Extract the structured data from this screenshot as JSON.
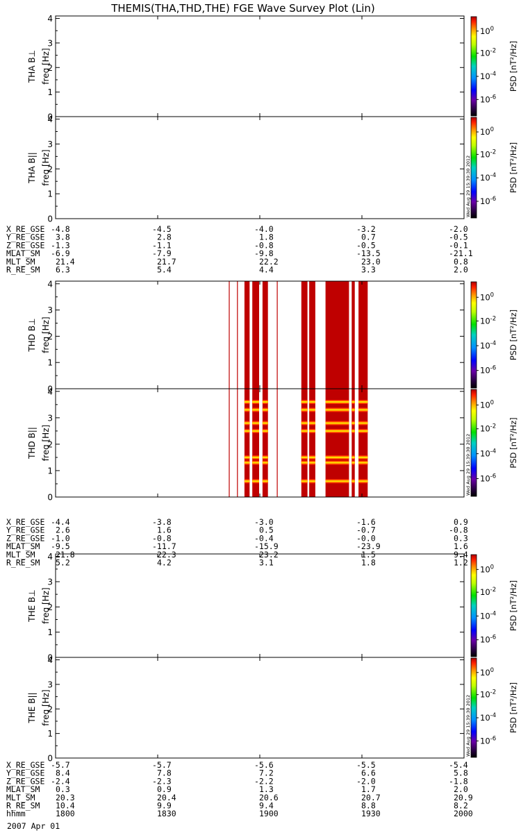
{
  "title": "THEMIS(THA,THD,THE) FGE Wave Survey Plot (Lin)",
  "date_label": "2007 Apr 01",
  "stamp": "Wed Aug 29 15:39:30 2012",
  "colorbar": {
    "label": "PSD [nT²/Hz]",
    "ticks": [
      {
        "base": "10",
        "exp": "0"
      },
      {
        "base": "10",
        "exp": "-2"
      },
      {
        "base": "10",
        "exp": "-4"
      },
      {
        "base": "10",
        "exp": "-6"
      }
    ]
  },
  "chart_data": {
    "type": "heatmap",
    "x_label": "hhmm",
    "x_ticks": [
      "1800",
      "1830",
      "1900",
      "1930",
      "2000"
    ],
    "x_range": [
      "1800",
      "2000"
    ],
    "y_label": "freq [Hz]",
    "y_ticks": [
      "0",
      "1",
      "2",
      "3",
      "4"
    ],
    "y_range": [
      0,
      4.1
    ],
    "color_scale": "log PSD, 1e-7 to 1e1 nT^2/Hz (rainbow)",
    "panels": [
      {
        "probe": "THA",
        "component": "B⊥",
        "label": "THA B⊥",
        "bursts": []
      },
      {
        "probe": "THA",
        "component": "B||",
        "label": "THA B||",
        "bursts": []
      },
      {
        "probe": "THD",
        "component": "B⊥",
        "label": "THD B⊥",
        "bursts": [
          {
            "start": "1850.9",
            "end": "1851.0",
            "kind": "line"
          },
          {
            "start": "1853.3",
            "end": "1853.4",
            "kind": "line"
          },
          {
            "start": "1855.5",
            "end": "1857.0",
            "kind": "block"
          },
          {
            "start": "1857.8",
            "end": "1859.8",
            "kind": "block"
          },
          {
            "start": "1900.8",
            "end": "1902.4",
            "kind": "block"
          },
          {
            "start": "1905.0",
            "end": "1905.1",
            "kind": "line"
          },
          {
            "start": "1912.2",
            "end": "1914.0",
            "kind": "block"
          },
          {
            "start": "1914.5",
            "end": "1916.3",
            "kind": "block"
          },
          {
            "start": "1919.3",
            "end": "1926.2",
            "kind": "block"
          },
          {
            "start": "1927.0",
            "end": "1927.9",
            "kind": "block"
          },
          {
            "start": "1929.0",
            "end": "1931.7",
            "kind": "block"
          }
        ]
      },
      {
        "probe": "THD",
        "component": "B||",
        "label": "THD B||",
        "bursts": [
          {
            "start": "1850.9",
            "end": "1851.0",
            "kind": "line"
          },
          {
            "start": "1853.3",
            "end": "1853.4",
            "kind": "line"
          },
          {
            "start": "1855.5",
            "end": "1857.0",
            "kind": "block"
          },
          {
            "start": "1857.8",
            "end": "1859.8",
            "kind": "block"
          },
          {
            "start": "1900.8",
            "end": "1902.4",
            "kind": "block"
          },
          {
            "start": "1905.0",
            "end": "1905.1",
            "kind": "line"
          },
          {
            "start": "1912.2",
            "end": "1914.0",
            "kind": "block"
          },
          {
            "start": "1914.5",
            "end": "1916.3",
            "kind": "block"
          },
          {
            "start": "1919.3",
            "end": "1926.2",
            "kind": "block"
          },
          {
            "start": "1927.0",
            "end": "1927.9",
            "kind": "block"
          },
          {
            "start": "1929.0",
            "end": "1931.7",
            "kind": "block"
          }
        ],
        "harmonics_hz": [
          0.6,
          1.3,
          1.5,
          2.5,
          2.8,
          3.3,
          3.6
        ]
      },
      {
        "probe": "THE",
        "component": "B⊥",
        "label": "THE B⊥",
        "bursts": []
      },
      {
        "probe": "THE",
        "component": "B||",
        "label": "THE B||",
        "bursts": []
      }
    ]
  },
  "orbit_tables": [
    {
      "probe": "THA",
      "rows": [
        {
          "label": "X_RE_GSE",
          "values": [
            "-4.8",
            "-4.5",
            "-4.0",
            "-3.2",
            "-2.0"
          ]
        },
        {
          "label": "Y_RE_GSE",
          "values": [
            "3.8",
            "2.8",
            "1.8",
            "0.7",
            "-0.5"
          ]
        },
        {
          "label": "Z_RE_GSE",
          "values": [
            "-1.3",
            "-1.1",
            "-0.8",
            "-0.5",
            "-0.1"
          ]
        },
        {
          "label": "MLAT_SM",
          "values": [
            "-6.9",
            "-7.9",
            "-9.8",
            "-13.5",
            "-21.1"
          ]
        },
        {
          "label": "MLT_SM",
          "values": [
            "21.4",
            "21.7",
            "22.2",
            "23.0",
            "0.8"
          ]
        },
        {
          "label": "R_RE_SM",
          "values": [
            "6.3",
            "5.4",
            "4.4",
            "3.3",
            "2.0"
          ]
        }
      ]
    },
    {
      "probe": "THD",
      "rows": [
        {
          "label": "X_RE_GSE",
          "values": [
            "-4.4",
            "-3.8",
            "-3.0",
            "-1.6",
            "0.9"
          ]
        },
        {
          "label": "Y_RE_GSE",
          "values": [
            "2.6",
            "1.6",
            "0.5",
            "-0.7",
            "-0.8"
          ]
        },
        {
          "label": "Z_RE_GSE",
          "values": [
            "-1.0",
            "-0.8",
            "-0.4",
            "-0.0",
            "0.3"
          ]
        },
        {
          "label": "MLAT_SM",
          "values": [
            "-9.5",
            "-11.7",
            "-15.9",
            "-23.9",
            "1.6"
          ]
        },
        {
          "label": "MLT_SM",
          "values": [
            "21.8",
            "22.3",
            "23.2",
            "1.5",
            "9.4"
          ]
        },
        {
          "label": "R_RE_SM",
          "values": [
            "5.2",
            "4.2",
            "3.1",
            "1.8",
            "1.2"
          ]
        }
      ]
    },
    {
      "probe": "THE",
      "rows": [
        {
          "label": "X_RE_GSE",
          "values": [
            "-5.7",
            "-5.7",
            "-5.6",
            "-5.5",
            "-5.4"
          ]
        },
        {
          "label": "Y_RE_GSE",
          "values": [
            "8.4",
            "7.8",
            "7.2",
            "6.6",
            "5.8"
          ]
        },
        {
          "label": "Z_RE_GSE",
          "values": [
            "-2.4",
            "-2.3",
            "-2.2",
            "-2.0",
            "-1.8"
          ]
        },
        {
          "label": "MLAT_SM",
          "values": [
            "0.3",
            "0.9",
            "1.3",
            "1.7",
            "2.0"
          ]
        },
        {
          "label": "MLT_SM",
          "values": [
            "20.3",
            "20.4",
            "20.6",
            "20.7",
            "20.9"
          ]
        },
        {
          "label": "R_RE_SM",
          "values": [
            "10.4",
            "9.9",
            "9.4",
            "8.8",
            "8.2"
          ]
        },
        {
          "label": "hhmm",
          "values": [
            "1800",
            "1830",
            "1900",
            "1930",
            "2000"
          ]
        }
      ]
    }
  ],
  "colors": {
    "burst": "#bf0000",
    "harmonic_core": "#ffe000",
    "harmonic_mid": "#ff7000",
    "harmonic_edge": "#ff2a00",
    "axis": "#000000"
  }
}
